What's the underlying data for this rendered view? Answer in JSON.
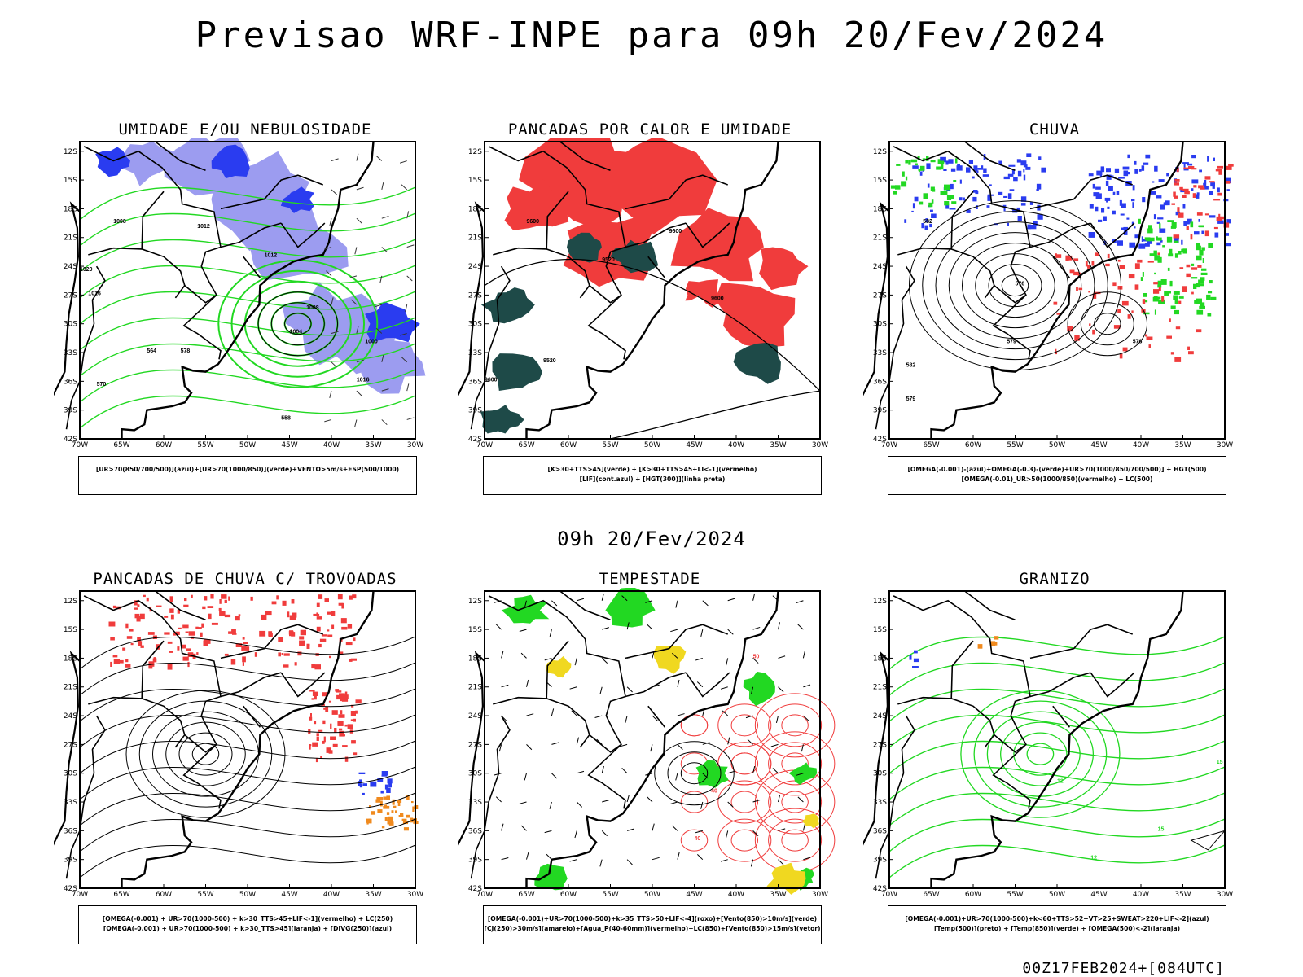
{
  "main_title": "Previsao WRF-INPE  para 09h 20/Fev/2024",
  "mid_date": "09h 20/Fev/2024",
  "footer": "00Z17FEB2024+[084UTC]",
  "axes": {
    "lat_ticks": [
      "12S",
      "15S",
      "18S",
      "21S",
      "24S",
      "27S",
      "30S",
      "33S",
      "36S",
      "39S",
      "42S"
    ],
    "lon_ticks": [
      "70W",
      "65W",
      "60W",
      "55W",
      "50W",
      "45W",
      "40W",
      "35W",
      "30W"
    ]
  },
  "colors": {
    "red": "#f03c3c",
    "green": "#22d822",
    "blue": "#2a3cf0",
    "lightblue": "#9c9cf0",
    "darkteal": "#1e4a48",
    "yellow": "#f0d820",
    "orange": "#f08a1e",
    "black": "#000000"
  },
  "panels": [
    {
      "title": "UMIDADE E/OU NEBULOSIDADE",
      "legend": [
        "[UR>70(850/700/500)](azul)+[UR>70(1000/850)](verde)+VENTO>5m/s+ESP(500/1000)"
      ],
      "labels": [
        "1012",
        "1008",
        "1016",
        "1020",
        "1012",
        "1004",
        "1008",
        "1016",
        "578",
        "570",
        "564",
        "558",
        "1000"
      ]
    },
    {
      "title": "PANCADAS POR CALOR E UMIDADE",
      "legend": [
        "[K>30+TTS>45](verde) + [K>30+TTS>45+LI<-1](vermelho)",
        "[LIF](cont.azul) + [HGT(300)](linha preta)"
      ],
      "labels": [
        "9600",
        "9520",
        "9600",
        "9600",
        "9520",
        "9600"
      ]
    },
    {
      "title": "CHUVA",
      "legend": [
        "[OMEGA(-0.001)-(azul)+OMEGA(-0.3)-(verde)+UR>70(1000/850/700/500)] + HGT(500)",
        "[OMEGA(-0.01)_UR>50(1000/850)(vermelho) + LC(500)"
      ],
      "labels": [
        "582",
        "579",
        "576",
        "576",
        "579",
        "582"
      ]
    },
    {
      "title": "PANCADAS DE CHUVA C/ TROVOADAS",
      "legend": [
        "[OMEGA(-0.001) + UR>70(1000-500) + k>30_TTS>45+LIF<-1](vermelho) + LC(250)",
        "[OMEGA(-0.001) + UR>70(1000-500) + k>30_TTS>45](laranja) + [DIVG(250)](azul)"
      ],
      "labels": []
    },
    {
      "title": "TEMPESTADE",
      "legend": [
        "[OMEGA(-0.001)+UR>70(1000-500)+k>35_TTS>50+LIF<-4](roxo)+[Vento(850)>10m/s](verde)",
        "[CJ(250)>30m/s](amarelo)+[Agua_P(40-60mm)](vermelho)+LC(850)+[Vento(850)>15m/s](vetor)"
      ],
      "labels": [
        "50",
        "40",
        "40"
      ]
    },
    {
      "title": "GRANIZO",
      "legend": [
        "[OMEGA(-0.001)+UR>70(1000-500)+k<60+TTS>52+VT>25+SWEAT>220+LIF<-2](azul)",
        "[Temp(500)](preto) + [Temp(850)](verde) + [OMEGA(500)<-2](laranja)"
      ],
      "labels": [
        "15",
        "15",
        "12",
        "12"
      ]
    }
  ]
}
